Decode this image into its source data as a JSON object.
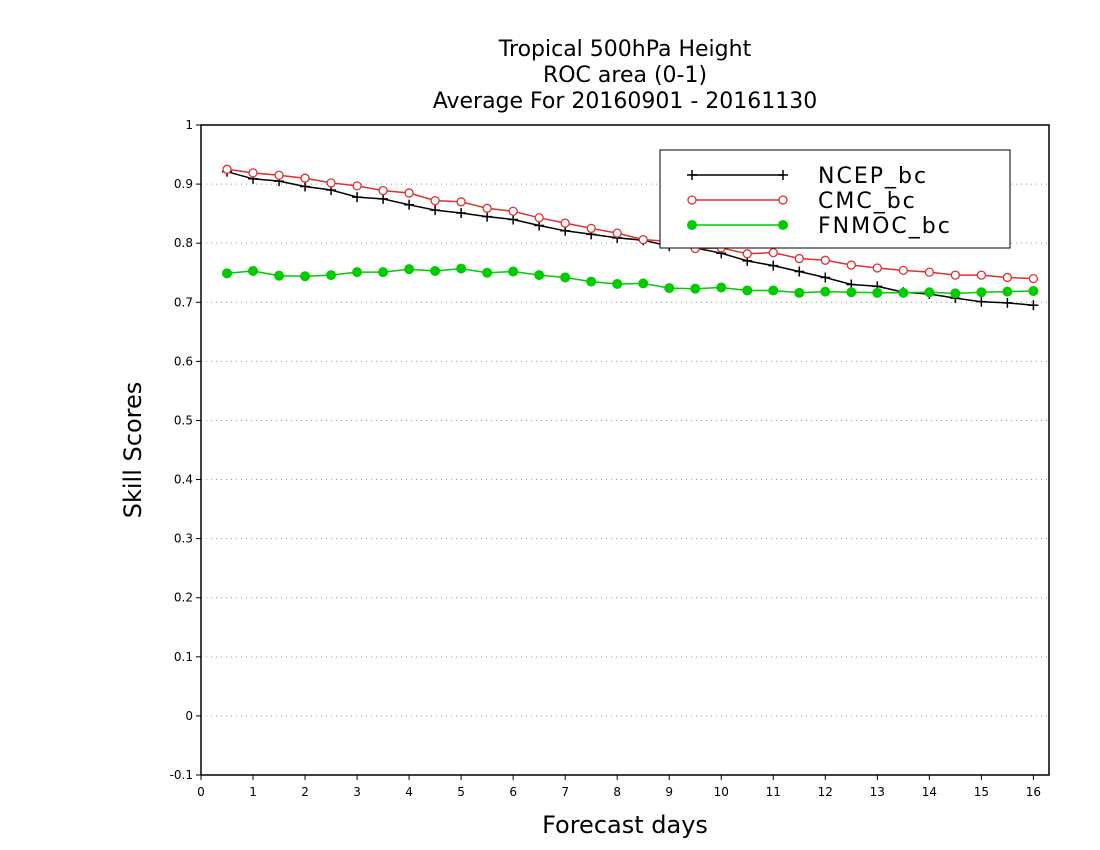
{
  "chart_data": {
    "type": "line",
    "title_lines": [
      "Tropical 500hPa Height",
      "ROC area (0-1)",
      "Average For 20160901 - 20161130"
    ],
    "xlabel": "Forecast days",
    "ylabel": "Skill Scores",
    "xlim": [
      0,
      16.3
    ],
    "ylim": [
      -0.1,
      1
    ],
    "x_ticks": [
      0,
      1,
      2,
      3,
      4,
      5,
      6,
      7,
      8,
      9,
      10,
      11,
      12,
      13,
      14,
      15,
      16
    ],
    "x_tick_labels": [
      "0",
      "1",
      "2",
      "3",
      "4",
      "5",
      "6",
      "7",
      "8",
      "9",
      "10",
      "11",
      "12",
      "13",
      "14",
      "15",
      "16"
    ],
    "y_ticks": [
      -0.1,
      0,
      0.1,
      0.2,
      0.3,
      0.4,
      0.5,
      0.6,
      0.7,
      0.8,
      0.9,
      1
    ],
    "y_tick_labels": [
      "-0.1",
      "0",
      "0.1",
      "0.2",
      "0.3",
      "0.4",
      "0.5",
      "0.6",
      "0.7",
      "0.8",
      "0.9",
      "1"
    ],
    "grid": "horizontal dotted",
    "legend_position": "top-right",
    "x": [
      0.5,
      1,
      1.5,
      2,
      2.5,
      3,
      3.5,
      4,
      4.5,
      5,
      5.5,
      6,
      6.5,
      7,
      7.5,
      8,
      8.5,
      9,
      9.5,
      10,
      10.5,
      11,
      11.5,
      12,
      12.5,
      13,
      13.5,
      14,
      14.5,
      15,
      15.5,
      16
    ],
    "series": [
      {
        "name": "NCEP_bc",
        "color": "#000000",
        "marker": "plus",
        "values": [
          0.921,
          0.909,
          0.905,
          0.896,
          0.89,
          0.878,
          0.875,
          0.865,
          0.856,
          0.851,
          0.845,
          0.84,
          0.83,
          0.821,
          0.815,
          0.809,
          0.805,
          0.795,
          0.792,
          0.783,
          0.77,
          0.762,
          0.752,
          0.742,
          0.73,
          0.727,
          0.717,
          0.714,
          0.707,
          0.701,
          0.699,
          0.695
        ]
      },
      {
        "name": "CMC_bc",
        "color": "#e03030",
        "marker": "open-circle",
        "values": [
          0.925,
          0.919,
          0.915,
          0.91,
          0.902,
          0.897,
          0.889,
          0.885,
          0.872,
          0.87,
          0.859,
          0.854,
          0.843,
          0.834,
          0.825,
          0.817,
          0.806,
          0.803,
          0.791,
          0.792,
          0.782,
          0.784,
          0.774,
          0.771,
          0.763,
          0.758,
          0.754,
          0.751,
          0.746,
          0.746,
          0.742,
          0.74
        ]
      },
      {
        "name": "FNMOC_bc",
        "color": "#00cc00",
        "marker": "filled-circle",
        "values": [
          0.749,
          0.753,
          0.745,
          0.744,
          0.746,
          0.751,
          0.751,
          0.756,
          0.753,
          0.757,
          0.75,
          0.752,
          0.746,
          0.742,
          0.735,
          0.731,
          0.732,
          0.724,
          0.723,
          0.725,
          0.72,
          0.72,
          0.716,
          0.718,
          0.717,
          0.716,
          0.716,
          0.717,
          0.715,
          0.717,
          0.718,
          0.719
        ]
      }
    ]
  }
}
